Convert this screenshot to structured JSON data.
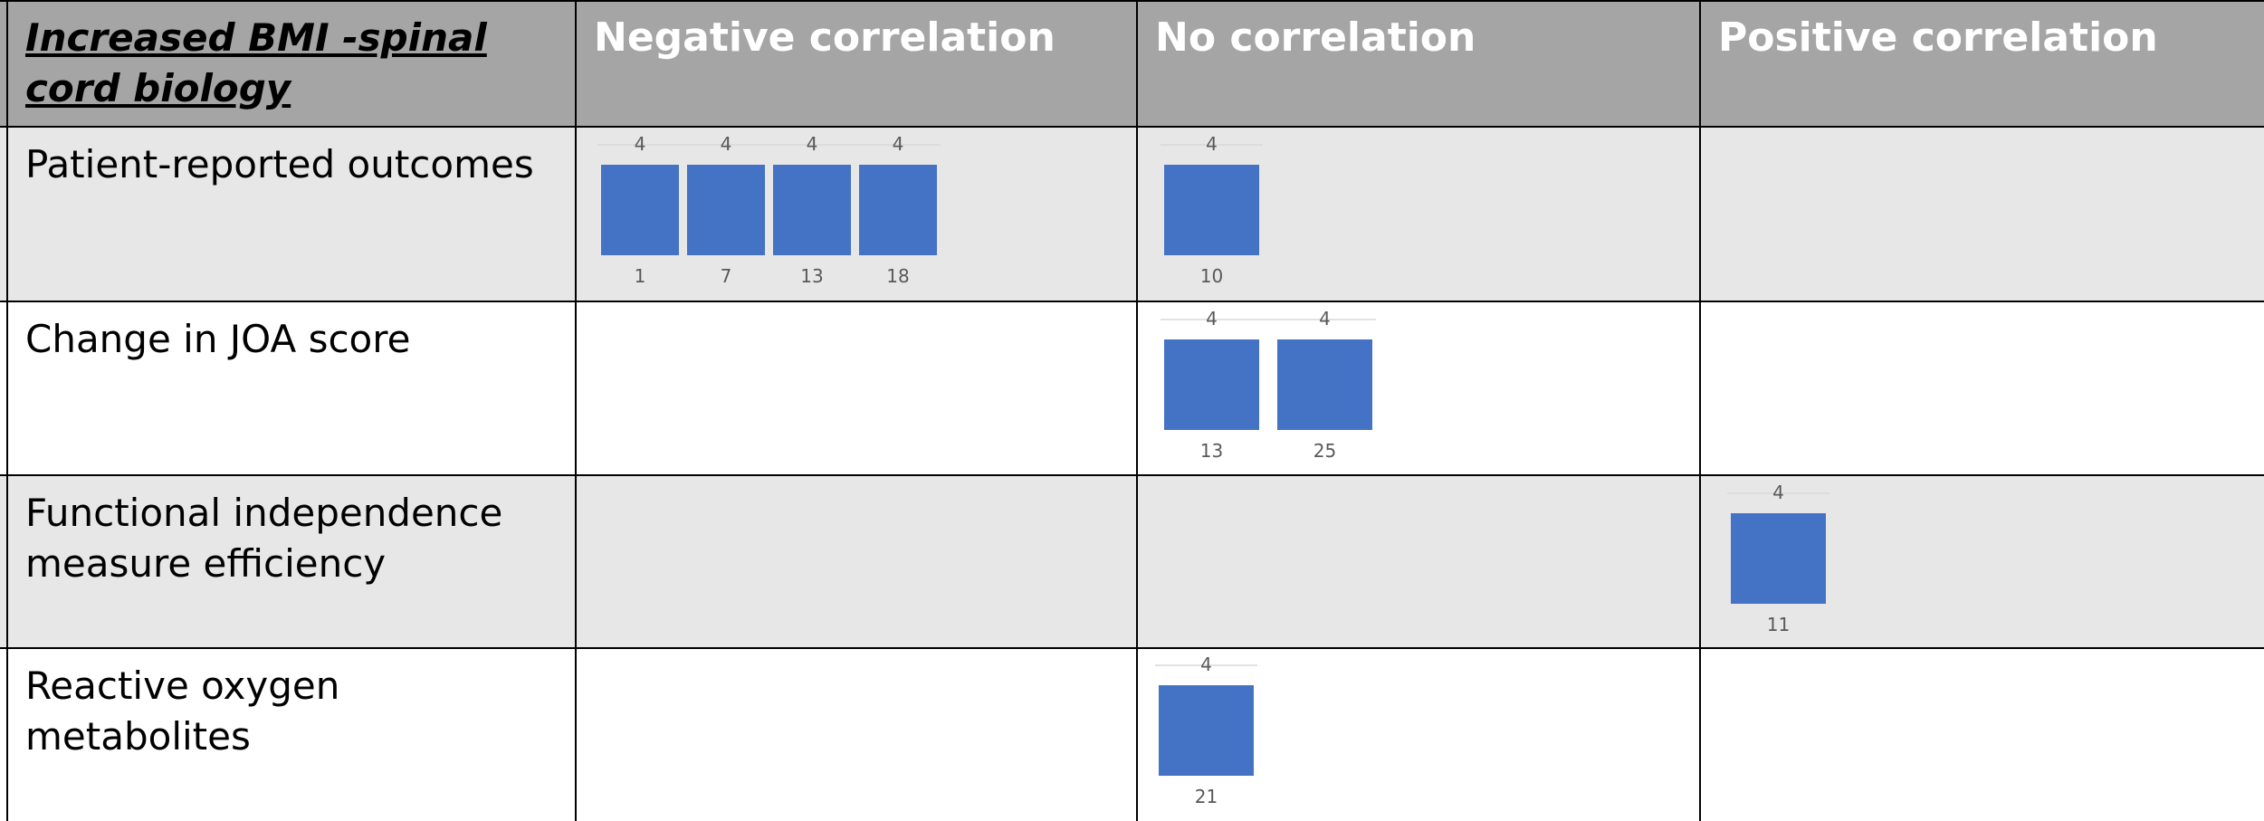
{
  "table": {
    "corner": "Increased BMI -spinal cord biology",
    "columns": [
      "Negative correlation",
      "No correlation",
      "Positive correlation"
    ],
    "rows": [
      "Patient-reported outcomes",
      "Change in JOA score",
      "Functional independence measure efficiency",
      "Reactive oxygen metabolites"
    ]
  },
  "colors": {
    "header": "#a5a5a5",
    "shade": "#e7e7e7",
    "bar": "#4472c4"
  },
  "chart_data": [
    {
      "type": "bar",
      "row": "Patient-reported outcomes",
      "column": "Negative correlation",
      "categories": [
        "1",
        "7",
        "13",
        "18"
      ],
      "values": [
        4,
        4,
        4,
        4
      ]
    },
    {
      "type": "bar",
      "row": "Patient-reported outcomes",
      "column": "No correlation",
      "categories": [
        "10"
      ],
      "values": [
        4
      ]
    },
    {
      "type": "bar",
      "row": "Change in JOA score",
      "column": "No correlation",
      "categories": [
        "13",
        "25"
      ],
      "values": [
        4,
        4
      ]
    },
    {
      "type": "bar",
      "row": "Functional independence measure efficiency",
      "column": "Positive correlation",
      "categories": [
        "11"
      ],
      "values": [
        4
      ]
    },
    {
      "type": "bar",
      "row": "Reactive oxygen metabolites",
      "column": "No correlation",
      "categories": [
        "21"
      ],
      "values": [
        4
      ]
    }
  ]
}
